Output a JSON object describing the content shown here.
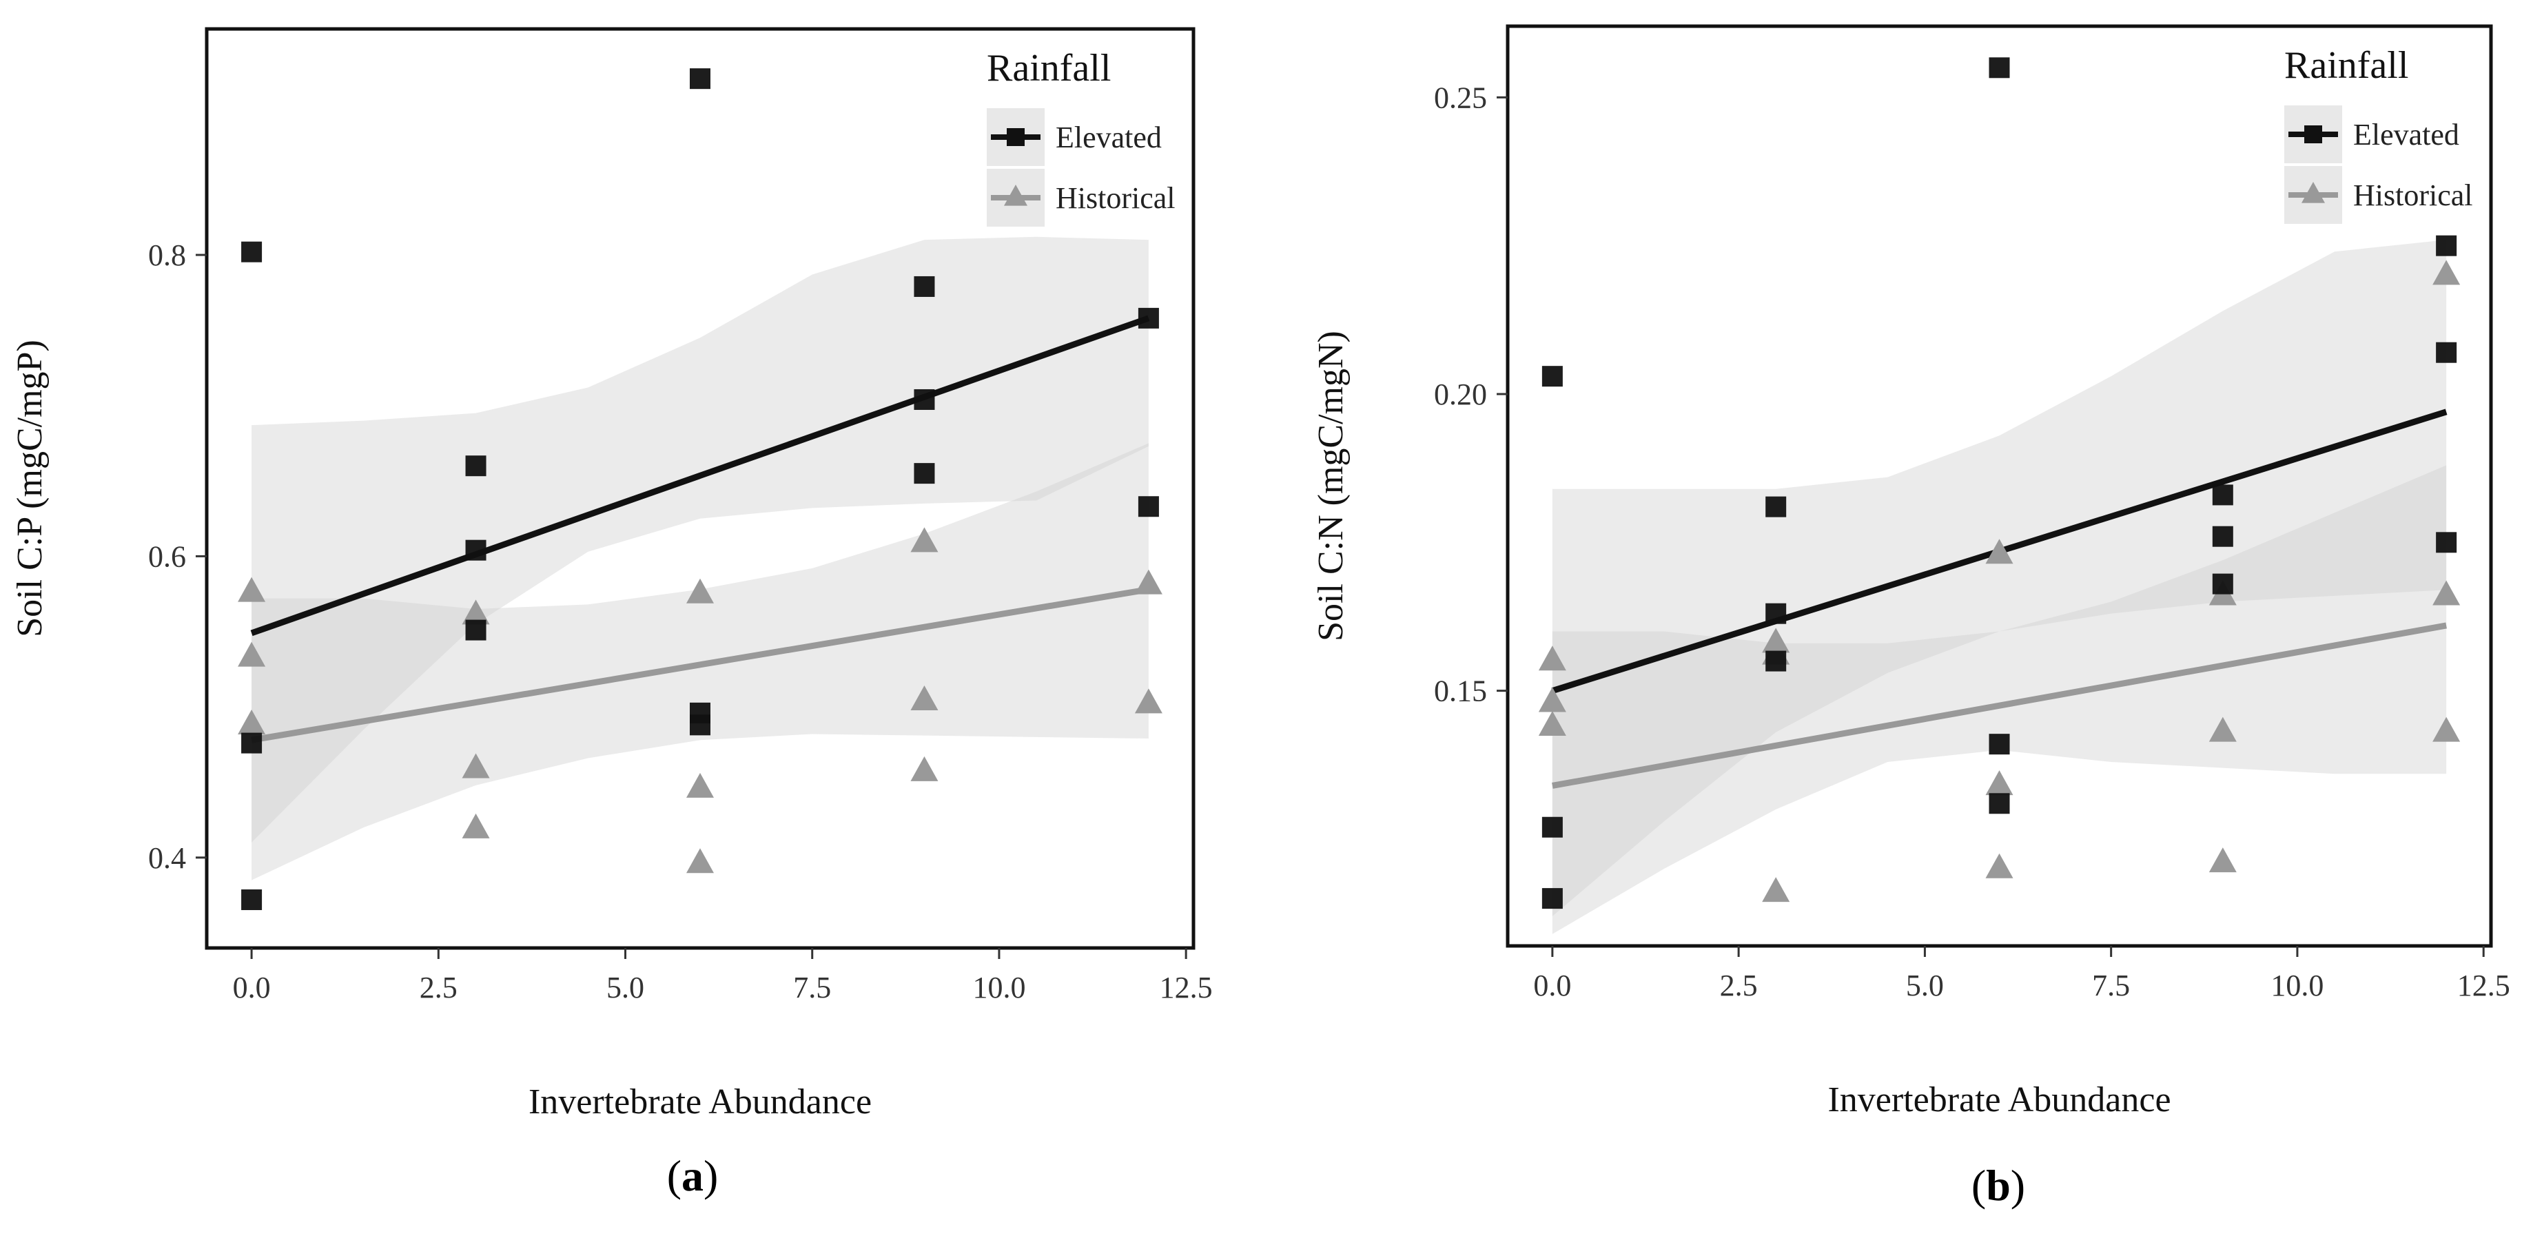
{
  "colors": {
    "elevated": "#111111",
    "historical": "#999999",
    "band": "#cccccc",
    "frame": "#111111",
    "background": "#ffffff"
  },
  "chart_data": [
    {
      "type": "scatter",
      "panel_label": "a",
      "panel_label_open": "(",
      "panel_label_close": ")",
      "xlabel": "Invertebrate Abundance",
      "ylabel": "Soil C:P (mgC/mgP)",
      "xlim": [
        -0.6,
        12.6
      ],
      "ylim": [
        0.34,
        0.95
      ],
      "xticks": [
        0,
        2.5,
        5,
        7.5,
        10,
        12.5
      ],
      "xtick_labels": [
        "0.0",
        "2.5",
        "5.0",
        "7.5",
        "10.0",
        "12.5"
      ],
      "yticks": [
        0.4,
        0.6,
        0.8
      ],
      "ytick_labels": [
        "0.4",
        "0.6",
        "0.8"
      ],
      "legend": {
        "title": "Rainfall",
        "entries": [
          "Elevated",
          "Historical"
        ],
        "position": "top-right"
      },
      "series": [
        {
          "name": "Elevated",
          "marker": "square",
          "x": [
            0,
            0,
            0,
            3,
            3,
            3,
            6,
            6,
            6,
            9,
            9,
            9,
            12,
            12
          ],
          "y": [
            0.802,
            0.476,
            0.372,
            0.66,
            0.604,
            0.551,
            0.917,
            0.496,
            0.488,
            0.779,
            0.704,
            0.655,
            0.758,
            0.633
          ],
          "fit": {
            "x": [
              0,
              12
            ],
            "y": [
              0.549,
              0.758
            ]
          },
          "ci": {
            "x": [
              0,
              1.5,
              3,
              4.5,
              6,
              7.5,
              9,
              10.5,
              12
            ],
            "lower": [
              0.41,
              0.485,
              0.555,
              0.603,
              0.625,
              0.632,
              0.635,
              0.637,
              0.673
            ],
            "upper": [
              0.687,
              0.69,
              0.695,
              0.712,
              0.745,
              0.787,
              0.81,
              0.812,
              0.81
            ]
          }
        },
        {
          "name": "Historical",
          "marker": "triangle",
          "x": [
            0,
            0,
            0,
            3,
            3,
            3,
            6,
            6,
            6,
            9,
            9,
            9,
            12,
            12
          ],
          "y": [
            0.576,
            0.533,
            0.488,
            0.561,
            0.459,
            0.419,
            0.575,
            0.446,
            0.396,
            0.609,
            0.504,
            0.457,
            0.581,
            0.502
          ],
          "fit": {
            "x": [
              0,
              12
            ],
            "y": [
              0.478,
              0.578
            ]
          },
          "ci": {
            "x": [
              0,
              1.5,
              3,
              4.5,
              6,
              7.5,
              9,
              10.5,
              12
            ],
            "lower": [
              0.385,
              0.42,
              0.448,
              0.466,
              0.478,
              0.482,
              0.481,
              0.48,
              0.479
            ],
            "upper": [
              0.572,
              0.572,
              0.565,
              0.568,
              0.578,
              0.592,
              0.615,
              0.643,
              0.675
            ]
          }
        }
      ]
    },
    {
      "type": "scatter",
      "panel_label": "b",
      "panel_label_open": "(",
      "panel_label_close": ")",
      "xlabel": "Invertebrate Abundance",
      "ylabel": "Soil C:N (mgC/mgN)",
      "xlim": [
        -0.6,
        12.6
      ],
      "ylim": [
        0.107,
        0.262
      ],
      "xticks": [
        0,
        2.5,
        5,
        7.5,
        10,
        12.5
      ],
      "xtick_labels": [
        "0.0",
        "2.5",
        "5.0",
        "7.5",
        "10.0",
        "12.5"
      ],
      "yticks": [
        0.15,
        0.2,
        0.25
      ],
      "ytick_labels": [
        "0.15",
        "0.20",
        "0.25"
      ],
      "legend": {
        "title": "Rainfall",
        "entries": [
          "Elevated",
          "Historical"
        ],
        "position": "top-right"
      },
      "series": [
        {
          "name": "Elevated",
          "marker": "square",
          "x": [
            0,
            0,
            0,
            3,
            3,
            3,
            6,
            6,
            6,
            9,
            9,
            9,
            12,
            12,
            12
          ],
          "y": [
            0.203,
            0.127,
            0.115,
            0.181,
            0.163,
            0.155,
            0.255,
            0.141,
            0.131,
            0.183,
            0.176,
            0.168,
            0.225,
            0.207,
            0.175
          ],
          "fit": {
            "x": [
              0,
              12
            ],
            "y": [
              0.15,
              0.197
            ]
          },
          "ci": {
            "x": [
              0,
              1.5,
              3,
              4.5,
              6,
              7.5,
              9,
              10.5,
              12
            ],
            "lower": [
              0.112,
              0.128,
              0.143,
              0.153,
              0.16,
              0.163,
              0.165,
              0.166,
              0.167
            ],
            "upper": [
              0.184,
              0.184,
              0.184,
              0.186,
              0.193,
              0.203,
              0.214,
              0.224,
              0.226
            ]
          }
        },
        {
          "name": "Historical",
          "marker": "triangle",
          "x": [
            0,
            0,
            0,
            3,
            3,
            3,
            6,
            6,
            6,
            9,
            9,
            9,
            12,
            12,
            12
          ],
          "y": [
            0.155,
            0.148,
            0.144,
            0.158,
            0.156,
            0.116,
            0.173,
            0.134,
            0.12,
            0.166,
            0.143,
            0.121,
            0.22,
            0.166,
            0.143
          ],
          "fit": {
            "x": [
              0,
              12
            ],
            "y": [
              0.134,
              0.161
            ]
          },
          "ci": {
            "x": [
              0,
              1.5,
              3,
              4.5,
              6,
              7.5,
              9,
              10.5,
              12
            ],
            "lower": [
              0.109,
              0.12,
              0.13,
              0.138,
              0.14,
              0.138,
              0.137,
              0.136,
              0.136
            ],
            "upper": [
              0.16,
              0.16,
              0.158,
              0.158,
              0.16,
              0.165,
              0.172,
              0.18,
              0.188
            ]
          }
        }
      ]
    }
  ]
}
